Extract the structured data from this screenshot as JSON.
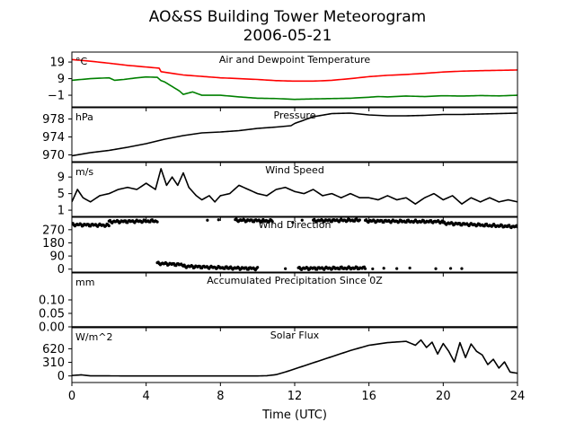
{
  "figure": {
    "title_line1": "AO&SS Building Tower Meteorogram",
    "title_line2": "2006-05-21",
    "xlabel": "Time (UTC)"
  },
  "chart_data": [
    {
      "type": "line",
      "title": "Air and Dewpoint Temperature",
      "unit_label": "°C",
      "xlim": [
        0,
        24
      ],
      "ylim": [
        -8,
        25
      ],
      "yticks": [
        19,
        9,
        -1
      ],
      "ytick_labels": [
        "19",
        "9",
        "−1"
      ],
      "series": [
        {
          "color": "#ff0000",
          "points": [
            [
              0,
              20.5
            ],
            [
              1,
              19.5
            ],
            [
              2,
              18.3
            ],
            [
              3,
              17
            ],
            [
              4,
              16
            ],
            [
              4.7,
              15.3
            ],
            [
              4.8,
              13.2
            ],
            [
              6,
              11.2
            ],
            [
              8,
              9.5
            ],
            [
              10,
              8.5
            ],
            [
              11,
              7.8
            ],
            [
              12,
              7.5
            ],
            [
              13,
              7.5
            ],
            [
              14,
              8
            ],
            [
              15,
              9
            ],
            [
              16,
              10.2
            ],
            [
              17,
              11
            ],
            [
              18,
              11.5
            ],
            [
              19,
              12.2
            ],
            [
              20,
              13
            ],
            [
              21,
              13.5
            ],
            [
              22,
              13.8
            ],
            [
              23,
              14
            ],
            [
              24,
              14.2
            ]
          ]
        },
        {
          "color": "#008000",
          "points": [
            [
              0,
              8
            ],
            [
              0.5,
              8.5
            ],
            [
              1,
              9
            ],
            [
              2,
              9.5
            ],
            [
              2.3,
              8
            ],
            [
              2.8,
              8.5
            ],
            [
              3.5,
              9.5
            ],
            [
              4,
              10
            ],
            [
              4.6,
              9.8
            ],
            [
              4.8,
              7.8
            ],
            [
              5,
              7
            ],
            [
              5.8,
              1.5
            ],
            [
              6,
              -0.5
            ],
            [
              6.5,
              1
            ],
            [
              7,
              -1
            ],
            [
              8,
              -1
            ],
            [
              9,
              -2
            ],
            [
              10,
              -2.8
            ],
            [
              11,
              -3
            ],
            [
              12,
              -3.5
            ],
            [
              13,
              -3.2
            ],
            [
              14,
              -3
            ],
            [
              15,
              -2.8
            ],
            [
              16,
              -2.2
            ],
            [
              16.5,
              -1.8
            ],
            [
              17,
              -2
            ],
            [
              18,
              -1.5
            ],
            [
              19,
              -1.8
            ],
            [
              20,
              -1.3
            ],
            [
              21,
              -1.5
            ],
            [
              22,
              -1.2
            ],
            [
              23,
              -1.4
            ],
            [
              24,
              -1
            ]
          ]
        }
      ]
    },
    {
      "type": "line",
      "title": "Pressure",
      "unit_label": "hPa",
      "xlim": [
        0,
        24
      ],
      "ylim": [
        968.5,
        980.5
      ],
      "yticks": [
        978,
        974,
        970
      ],
      "ytick_labels": [
        "978",
        "974",
        "970"
      ],
      "series": [
        {
          "color": "#000000",
          "points": [
            [
              0,
              969.8
            ],
            [
              1,
              970.5
            ],
            [
              2,
              971
            ],
            [
              3,
              971.7
            ],
            [
              4,
              972.5
            ],
            [
              5,
              973.5
            ],
            [
              6,
              974.3
            ],
            [
              7,
              974.9
            ],
            [
              8,
              975.1
            ],
            [
              9,
              975.4
            ],
            [
              10,
              975.9
            ],
            [
              11,
              976.2
            ],
            [
              11.8,
              976.5
            ],
            [
              12,
              977
            ],
            [
              13,
              978.5
            ],
            [
              14,
              979.2
            ],
            [
              15,
              979.3
            ],
            [
              16,
              978.9
            ],
            [
              17,
              978.7
            ],
            [
              18,
              978.7
            ],
            [
              19,
              978.8
            ],
            [
              20,
              979
            ],
            [
              21,
              979
            ],
            [
              22,
              979.1
            ],
            [
              23,
              979.2
            ],
            [
              24,
              979.3
            ]
          ]
        }
      ]
    },
    {
      "type": "line",
      "title": "Wind Speed",
      "unit_label": "m/s",
      "xlim": [
        0,
        24
      ],
      "ylim": [
        -0.5,
        12.5
      ],
      "yticks": [
        9,
        5,
        1
      ],
      "ytick_labels": [
        "9",
        "5",
        "1"
      ],
      "series": [
        {
          "color": "#000000",
          "points": [
            [
              0,
              3
            ],
            [
              0.3,
              6
            ],
            [
              0.6,
              4
            ],
            [
              1,
              3
            ],
            [
              1.5,
              4.5
            ],
            [
              2,
              5
            ],
            [
              2.5,
              6
            ],
            [
              3,
              6.5
            ],
            [
              3.5,
              6
            ],
            [
              4,
              7.5
            ],
            [
              4.5,
              6
            ],
            [
              4.8,
              11
            ],
            [
              5.1,
              7
            ],
            [
              5.4,
              9
            ],
            [
              5.7,
              7
            ],
            [
              6,
              10
            ],
            [
              6.3,
              6.5
            ],
            [
              6.7,
              4.5
            ],
            [
              7,
              3.5
            ],
            [
              7.4,
              4.5
            ],
            [
              7.7,
              3
            ],
            [
              8,
              4.5
            ],
            [
              8.5,
              5
            ],
            [
              9,
              7
            ],
            [
              9.5,
              6
            ],
            [
              10,
              5
            ],
            [
              10.5,
              4.5
            ],
            [
              11,
              6
            ],
            [
              11.5,
              6.5
            ],
            [
              12,
              5.5
            ],
            [
              12.5,
              5
            ],
            [
              13,
              6
            ],
            [
              13.5,
              4.5
            ],
            [
              14,
              5
            ],
            [
              14.5,
              4
            ],
            [
              15,
              5
            ],
            [
              15.5,
              4
            ],
            [
              16,
              4
            ],
            [
              16.5,
              3.5
            ],
            [
              17,
              4.5
            ],
            [
              17.5,
              3.5
            ],
            [
              18,
              4
            ],
            [
              18.5,
              2.5
            ],
            [
              19,
              4
            ],
            [
              19.5,
              5
            ],
            [
              20,
              3.5
            ],
            [
              20.5,
              4.5
            ],
            [
              21,
              2.5
            ],
            [
              21.5,
              4
            ],
            [
              22,
              3
            ],
            [
              22.5,
              4
            ],
            [
              23,
              3
            ],
            [
              23.5,
              3.5
            ],
            [
              24,
              3
            ]
          ]
        }
      ]
    },
    {
      "type": "scatter",
      "title": "Wind Direction",
      "unit_label": "",
      "xlim": [
        0,
        24
      ],
      "ylim": [
        -20,
        355
      ],
      "yticks": [
        270,
        180,
        90,
        0
      ],
      "ytick_labels": [
        "270",
        "180",
        "90",
        "0"
      ],
      "series": [
        {
          "color": "#000000",
          "segments": [
            {
              "x_from": 0,
              "x_to": 2.0,
              "y_start": 305,
              "y_end": 300
            },
            {
              "x_from": 2.0,
              "x_to": 4.6,
              "y_start": 325,
              "y_end": 330
            },
            {
              "x_from": 4.6,
              "x_to": 6.0,
              "y_start": 40,
              "y_end": 30
            },
            {
              "x_from": 6.0,
              "x_to": 8.5,
              "y_start": 20,
              "y_end": 8
            },
            {
              "x_from": 8.5,
              "x_to": 10.0,
              "y_start": 8,
              "y_end": 4
            },
            {
              "x_from": 8.8,
              "x_to": 10.8,
              "y_start": 335,
              "y_end": 330
            },
            {
              "x_from": 12.2,
              "x_to": 15.8,
              "y_start": 5,
              "y_end": 8
            },
            {
              "x_from": 13.0,
              "x_to": 15.5,
              "y_start": 332,
              "y_end": 335
            },
            {
              "x_from": 15.8,
              "x_to": 20.0,
              "y_start": 330,
              "y_end": 325
            },
            {
              "x_from": 20.0,
              "x_to": 24.0,
              "y_start": 315,
              "y_end": 290
            }
          ],
          "isolated_points": [
            [
              7.3,
              335
            ],
            [
              7.9,
              338
            ],
            [
              11.5,
              3
            ],
            [
              16.2,
              2
            ],
            [
              16.8,
              6
            ],
            [
              17.5,
              4
            ],
            [
              18.2,
              8
            ],
            [
              19.6,
              3
            ],
            [
              20.4,
              5
            ],
            [
              21.0,
              4
            ],
            [
              11.9,
              320
            ],
            [
              12.4,
              335
            ]
          ]
        }
      ]
    },
    {
      "type": "line",
      "title": "Accumulated Precipitation Since 0Z",
      "unit_label": "mm",
      "xlim": [
        0,
        24
      ],
      "ylim": [
        0,
        0.2
      ],
      "yticks": [
        0.1,
        0.05,
        0.0
      ],
      "ytick_labels": [
        "0.10",
        "0.05",
        "0.00"
      ],
      "series": [
        {
          "color": "#000000",
          "points": [
            [
              0,
              0
            ],
            [
              24,
              0
            ]
          ]
        }
      ]
    },
    {
      "type": "line",
      "title": "Solar Flux",
      "unit_label": "W/m^2",
      "xlim": [
        0,
        24
      ],
      "ylim": [
        -150,
        1100
      ],
      "yticks": [
        620,
        310,
        0
      ],
      "ytick_labels": [
        "620",
        "310",
        "0"
      ],
      "series": [
        {
          "color": "#000000",
          "points": [
            [
              0,
              10
            ],
            [
              0.5,
              25
            ],
            [
              1,
              2
            ],
            [
              4,
              0
            ],
            [
              8,
              0
            ],
            [
              10,
              0
            ],
            [
              10.5,
              5
            ],
            [
              11,
              30
            ],
            [
              11.5,
              90
            ],
            [
              12,
              160
            ],
            [
              13,
              300
            ],
            [
              14,
              440
            ],
            [
              15,
              580
            ],
            [
              16,
              700
            ],
            [
              17,
              760
            ],
            [
              18,
              790
            ],
            [
              18.5,
              700
            ],
            [
              18.8,
              820
            ],
            [
              19.1,
              650
            ],
            [
              19.4,
              770
            ],
            [
              19.7,
              500
            ],
            [
              20,
              740
            ],
            [
              20.3,
              560
            ],
            [
              20.6,
              320
            ],
            [
              20.9,
              760
            ],
            [
              21.2,
              420
            ],
            [
              21.5,
              730
            ],
            [
              21.8,
              560
            ],
            [
              22.1,
              480
            ],
            [
              22.4,
              260
            ],
            [
              22.7,
              380
            ],
            [
              23,
              180
            ],
            [
              23.3,
              320
            ],
            [
              23.6,
              90
            ],
            [
              24,
              60
            ]
          ]
        }
      ]
    }
  ]
}
